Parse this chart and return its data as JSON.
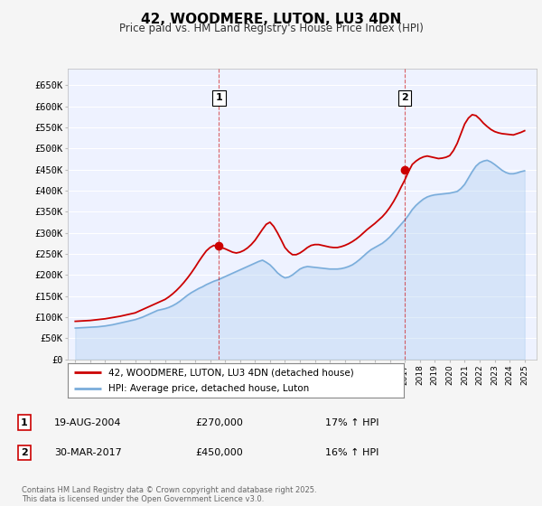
{
  "title": "42, WOODMERE, LUTON, LU3 4DN",
  "subtitle": "Price paid vs. HM Land Registry's House Price Index (HPI)",
  "ylabel_ticks": [
    "£0",
    "£50K",
    "£100K",
    "£150K",
    "£200K",
    "£250K",
    "£300K",
    "£350K",
    "£400K",
    "£450K",
    "£500K",
    "£550K",
    "£600K",
    "£650K"
  ],
  "ytick_values": [
    0,
    50000,
    100000,
    150000,
    200000,
    250000,
    300000,
    350000,
    400000,
    450000,
    500000,
    550000,
    600000,
    650000
  ],
  "ylim": [
    0,
    690000
  ],
  "bg_color": "#f5f5f5",
  "plot_bg": "#eef2ff",
  "grid_color": "#ffffff",
  "red_color": "#cc0000",
  "blue_color": "#7aaddb",
  "blue_fill": "#aaccee",
  "purchase1_date": "19-AUG-2004",
  "purchase1_price": 270000,
  "purchase1_hpi": "17% ↑ HPI",
  "purchase2_date": "30-MAR-2017",
  "purchase2_price": 450000,
  "purchase2_hpi": "16% ↑ HPI",
  "footnote": "Contains HM Land Registry data © Crown copyright and database right 2025.\nThis data is licensed under the Open Government Licence v3.0.",
  "legend_line1": "42, WOODMERE, LUTON, LU3 4DN (detached house)",
  "legend_line2": "HPI: Average price, detached house, Luton",
  "hpi_x": [
    1995.0,
    1995.25,
    1995.5,
    1995.75,
    1996.0,
    1996.25,
    1996.5,
    1996.75,
    1997.0,
    1997.25,
    1997.5,
    1997.75,
    1998.0,
    1998.25,
    1998.5,
    1998.75,
    1999.0,
    1999.25,
    1999.5,
    1999.75,
    2000.0,
    2000.25,
    2000.5,
    2000.75,
    2001.0,
    2001.25,
    2001.5,
    2001.75,
    2002.0,
    2002.25,
    2002.5,
    2002.75,
    2003.0,
    2003.25,
    2003.5,
    2003.75,
    2004.0,
    2004.25,
    2004.5,
    2004.75,
    2005.0,
    2005.25,
    2005.5,
    2005.75,
    2006.0,
    2006.25,
    2006.5,
    2006.75,
    2007.0,
    2007.25,
    2007.5,
    2007.75,
    2008.0,
    2008.25,
    2008.5,
    2008.75,
    2009.0,
    2009.25,
    2009.5,
    2009.75,
    2010.0,
    2010.25,
    2010.5,
    2010.75,
    2011.0,
    2011.25,
    2011.5,
    2011.75,
    2012.0,
    2012.25,
    2012.5,
    2012.75,
    2013.0,
    2013.25,
    2013.5,
    2013.75,
    2014.0,
    2014.25,
    2014.5,
    2014.75,
    2015.0,
    2015.25,
    2015.5,
    2015.75,
    2016.0,
    2016.25,
    2016.5,
    2016.75,
    2017.0,
    2017.25,
    2017.5,
    2017.75,
    2018.0,
    2018.25,
    2018.5,
    2018.75,
    2019.0,
    2019.25,
    2019.5,
    2019.75,
    2020.0,
    2020.25,
    2020.5,
    2020.75,
    2021.0,
    2021.25,
    2021.5,
    2021.75,
    2022.0,
    2022.25,
    2022.5,
    2022.75,
    2023.0,
    2023.25,
    2023.5,
    2023.75,
    2024.0,
    2024.25,
    2024.5,
    2024.75,
    2025.0
  ],
  "hpi_y": [
    74000,
    74500,
    75000,
    75500,
    76000,
    76500,
    77000,
    78000,
    79000,
    80500,
    82000,
    84000,
    86000,
    88000,
    90000,
    92000,
    94000,
    97000,
    100000,
    104000,
    108000,
    112000,
    116000,
    118000,
    120000,
    123000,
    127000,
    132000,
    138000,
    145000,
    152000,
    158000,
    163000,
    168000,
    172000,
    177000,
    181000,
    185000,
    188000,
    192000,
    196000,
    200000,
    204000,
    208000,
    212000,
    216000,
    220000,
    224000,
    228000,
    232000,
    235000,
    230000,
    224000,
    215000,
    205000,
    198000,
    193000,
    195000,
    200000,
    207000,
    214000,
    218000,
    220000,
    219000,
    218000,
    217000,
    216000,
    215000,
    214000,
    214000,
    214000,
    215000,
    217000,
    220000,
    224000,
    230000,
    237000,
    245000,
    253000,
    260000,
    265000,
    270000,
    275000,
    282000,
    290000,
    300000,
    310000,
    320000,
    330000,
    342000,
    355000,
    365000,
    373000,
    380000,
    385000,
    388000,
    390000,
    391000,
    392000,
    393000,
    394000,
    396000,
    398000,
    405000,
    415000,
    430000,
    445000,
    458000,
    466000,
    470000,
    472000,
    468000,
    462000,
    455000,
    448000,
    443000,
    440000,
    440000,
    442000,
    445000,
    447000
  ],
  "price_x": [
    1995.0,
    1995.25,
    1995.5,
    1995.75,
    1996.0,
    1996.25,
    1996.5,
    1996.75,
    1997.0,
    1997.25,
    1997.5,
    1997.75,
    1998.0,
    1998.25,
    1998.5,
    1998.75,
    1999.0,
    1999.25,
    1999.5,
    1999.75,
    2000.0,
    2000.25,
    2000.5,
    2000.75,
    2001.0,
    2001.25,
    2001.5,
    2001.75,
    2002.0,
    2002.25,
    2002.5,
    2002.75,
    2003.0,
    2003.25,
    2003.5,
    2003.75,
    2004.0,
    2004.25,
    2004.5,
    2004.75,
    2005.0,
    2005.25,
    2005.5,
    2005.75,
    2006.0,
    2006.25,
    2006.5,
    2006.75,
    2007.0,
    2007.25,
    2007.5,
    2007.75,
    2008.0,
    2008.25,
    2008.5,
    2008.75,
    2009.0,
    2009.25,
    2009.5,
    2009.75,
    2010.0,
    2010.25,
    2010.5,
    2010.75,
    2011.0,
    2011.25,
    2011.5,
    2011.75,
    2012.0,
    2012.25,
    2012.5,
    2012.75,
    2013.0,
    2013.25,
    2013.5,
    2013.75,
    2014.0,
    2014.25,
    2014.5,
    2014.75,
    2015.0,
    2015.25,
    2015.5,
    2015.75,
    2016.0,
    2016.25,
    2016.5,
    2016.75,
    2017.0,
    2017.25,
    2017.5,
    2017.75,
    2018.0,
    2018.25,
    2018.5,
    2018.75,
    2019.0,
    2019.25,
    2019.5,
    2019.75,
    2020.0,
    2020.25,
    2020.5,
    2020.75,
    2021.0,
    2021.25,
    2021.5,
    2021.75,
    2022.0,
    2022.25,
    2022.5,
    2022.75,
    2023.0,
    2023.25,
    2023.5,
    2023.75,
    2024.0,
    2024.25,
    2024.5,
    2024.75,
    2025.0
  ],
  "price_y": [
    90000,
    90500,
    91000,
    91500,
    92000,
    93000,
    94000,
    95000,
    96000,
    97500,
    99000,
    100500,
    102000,
    104000,
    106000,
    108000,
    110000,
    114000,
    118000,
    122000,
    126000,
    130000,
    134000,
    138000,
    142000,
    148000,
    155000,
    163000,
    172000,
    182000,
    193000,
    205000,
    218000,
    232000,
    245000,
    257000,
    265000,
    270000,
    268000,
    265000,
    262000,
    258000,
    254000,
    252000,
    254000,
    258000,
    264000,
    272000,
    282000,
    295000,
    308000,
    320000,
    325000,
    315000,
    300000,
    283000,
    265000,
    255000,
    248000,
    248000,
    252000,
    258000,
    265000,
    270000,
    272000,
    272000,
    270000,
    268000,
    266000,
    265000,
    265000,
    267000,
    270000,
    274000,
    279000,
    285000,
    292000,
    300000,
    308000,
    315000,
    322000,
    330000,
    338000,
    348000,
    360000,
    374000,
    390000,
    408000,
    425000,
    445000,
    462000,
    470000,
    476000,
    480000,
    482000,
    480000,
    478000,
    476000,
    477000,
    479000,
    483000,
    495000,
    512000,
    535000,
    558000,
    572000,
    580000,
    578000,
    570000,
    560000,
    552000,
    545000,
    540000,
    537000,
    535000,
    534000,
    533000,
    532000,
    535000,
    538000,
    542000
  ],
  "marker1_x": 2004.6,
  "marker1_y": 270000,
  "marker2_x": 2017.0,
  "marker2_y": 450000,
  "vline1_x": 2004.6,
  "vline2_x": 2017.0,
  "xlim_left": 1994.5,
  "xlim_right": 2025.8
}
